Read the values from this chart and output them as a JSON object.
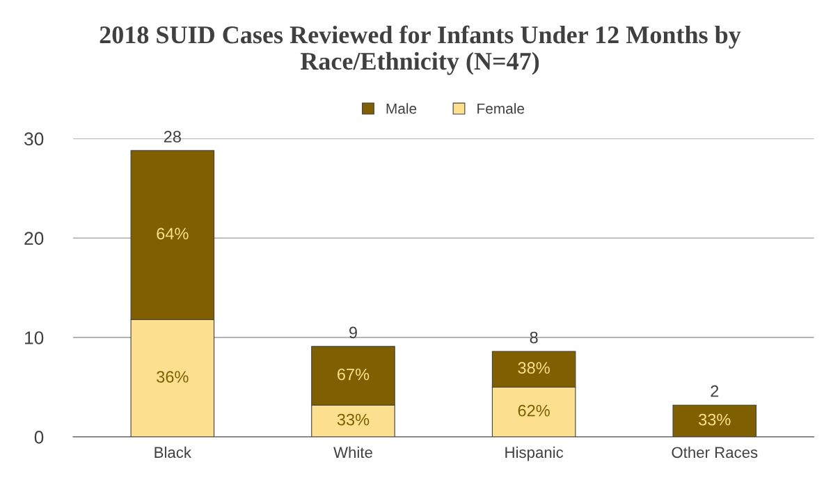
{
  "chart_data": {
    "type": "bar",
    "title": "2018 SUID Cases Reviewed for Infants Under 12 Months by Race/Ethnicity (N=47)",
    "categories": [
      "Black",
      "White",
      "Hispanic",
      "Other Races"
    ],
    "stacked": true,
    "series": [
      {
        "name": "Female",
        "color": "#fce08f",
        "values": [
          11.8,
          3.2,
          5.0,
          null
        ]
      },
      {
        "name": "Male",
        "color": "#7f5f00",
        "values": [
          17.0,
          5.9,
          3.6,
          3.2
        ]
      }
    ],
    "annotations": [
      "36%",
      "64%",
      "33%",
      "67%",
      "62%",
      "38%",
      "33%"
    ],
    "totals": [
      "28",
      "9",
      "8",
      "2"
    ],
    "ylim": [
      0,
      30
    ],
    "yticks": [
      0,
      10,
      20,
      30
    ],
    "grid": "y",
    "legend": "top"
  }
}
